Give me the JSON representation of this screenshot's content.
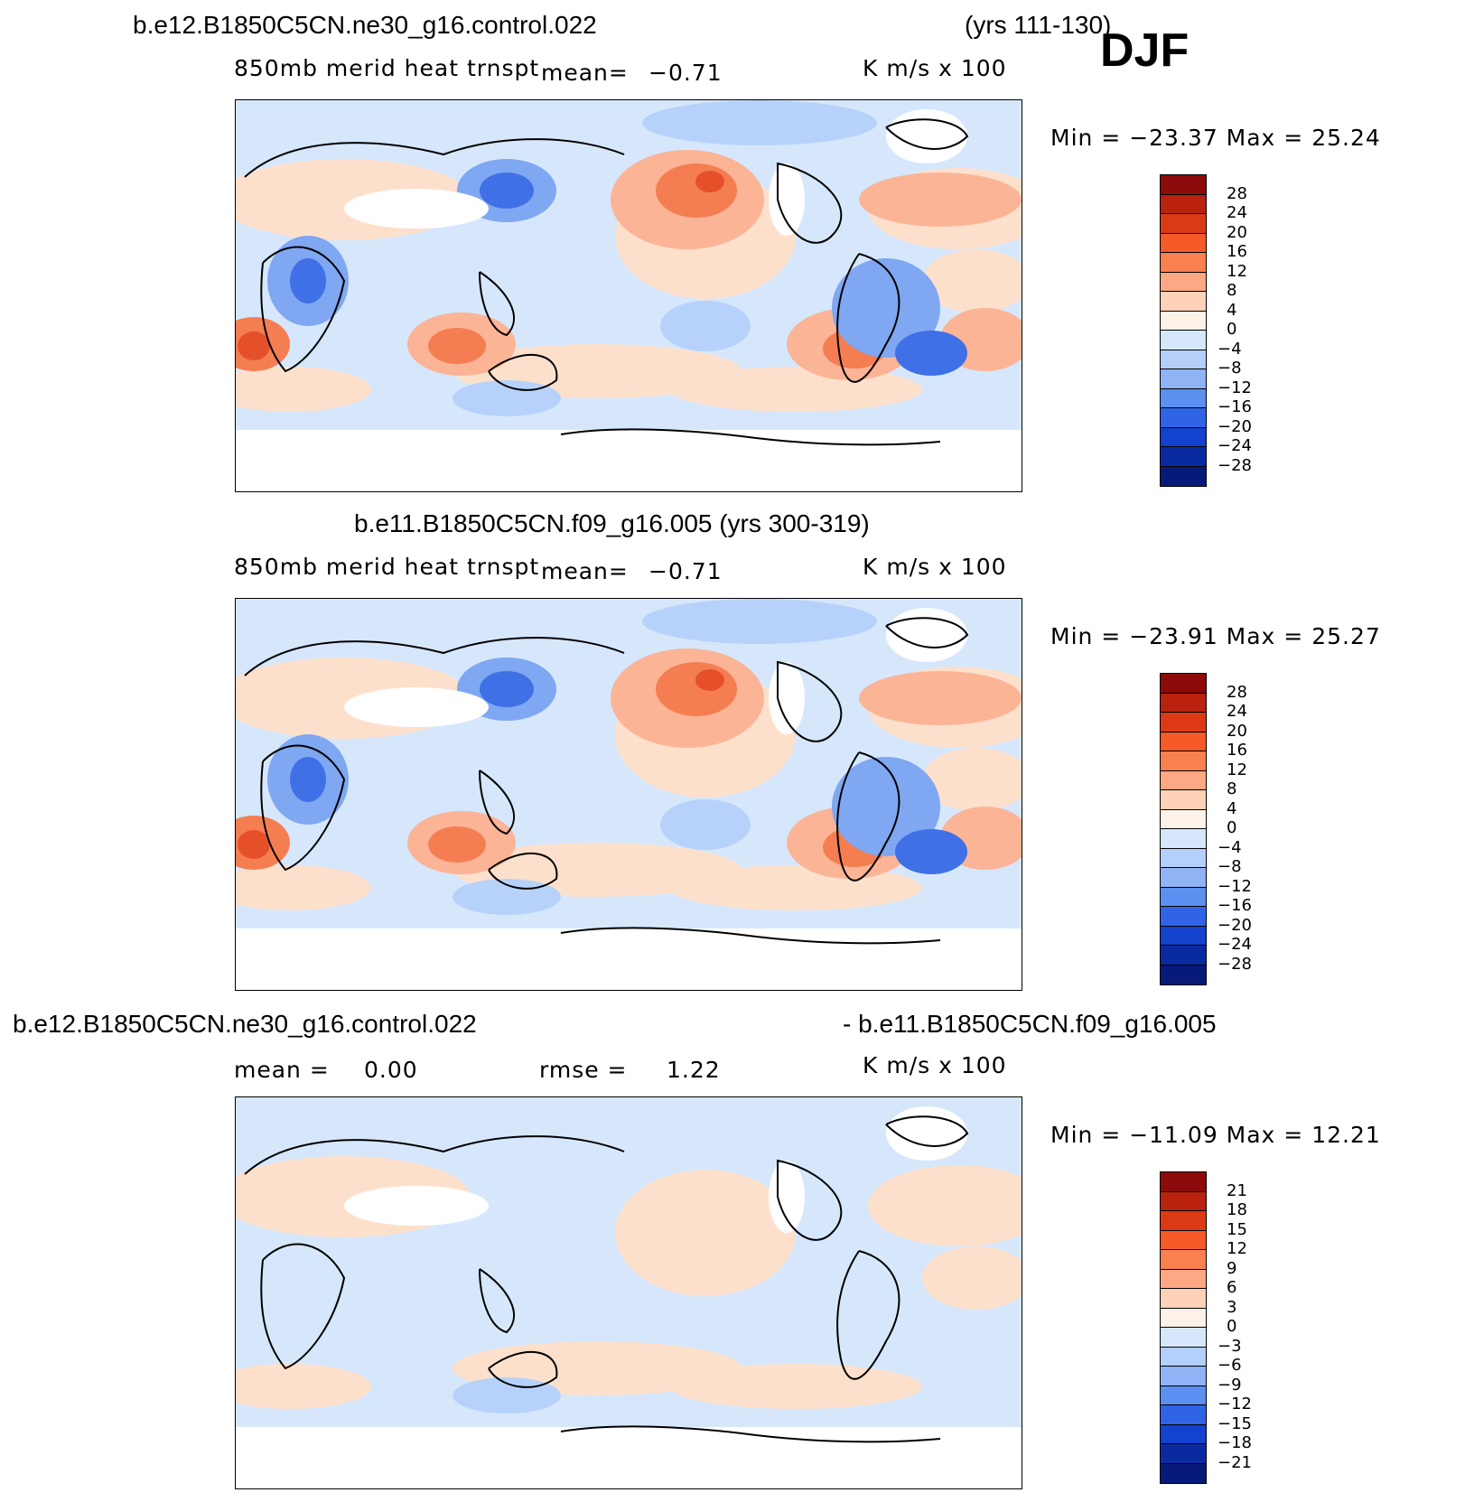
{
  "season": "DJF",
  "panels": [
    {
      "case_line": "b.e12.B1850C5CN.ne30_g16.control.022",
      "years": "(yrs 111-130)",
      "variable": "850mb merid heat trnspt",
      "mean_label": "mean=",
      "mean_value": "−0.71",
      "units": "K m/s x 100",
      "minmax": "Min = −23.37 Max =  25.24",
      "colorbar_labels": [
        "28",
        "24",
        "20",
        "16",
        "12",
        "8",
        "4",
        "0",
        "−4",
        "−8",
        "−12",
        "−16",
        "−20",
        "−24",
        "−28"
      ]
    },
    {
      "case_line": "b.e11.B1850C5CN.f09_g16.005 (yrs 300-319)",
      "variable": "850mb merid heat trnspt",
      "mean_label": "mean=",
      "mean_value": "−0.71",
      "units": "K m/s x 100",
      "minmax": "Min = −23.91 Max =  25.27",
      "colorbar_labels": [
        "28",
        "24",
        "20",
        "16",
        "12",
        "8",
        "4",
        "0",
        "−4",
        "−8",
        "−12",
        "−16",
        "−20",
        "−24",
        "−28"
      ]
    },
    {
      "case_line_left": "b.e12.B1850C5CN.ne30_g16.control.022",
      "case_line_right": "- b.e11.B1850C5CN.f09_g16.005",
      "mean_label": "mean =",
      "mean_value": "0.00",
      "rmse_label": "rmse =",
      "rmse_value": "1.22",
      "units": "K m/s x 100",
      "minmax": "Min = −11.09 Max =  12.21",
      "colorbar_labels": [
        "21",
        "18",
        "15",
        "12",
        "9",
        "6",
        "3",
        "0",
        "−3",
        "−6",
        "−9",
        "−12",
        "−15",
        "−18",
        "−21"
      ]
    }
  ],
  "colorbar_colors": [
    "#8c0a0a",
    "#b8220e",
    "#dc3a14",
    "#f55a28",
    "#f98050",
    "#fca884",
    "#fdd2b8",
    "#fdf2e8",
    "#d6e7fc",
    "#b4cffa",
    "#8fb3f5",
    "#5b8ff0",
    "#2f64e6",
    "#1342cf",
    "#0a2ba0",
    "#071a7a"
  ],
  "map_colors": {
    "ocean_base": "#d6e7fc",
    "warm_light": "#fde0cc",
    "warm_mid": "#fbb496",
    "warm_strong": "#f47e52",
    "warm_core": "#e5502a",
    "cool_light": "#b7d2fa",
    "cool_mid": "#7fa7f2",
    "cool_strong": "#3f70e6",
    "land_missing": "#ffffff"
  }
}
